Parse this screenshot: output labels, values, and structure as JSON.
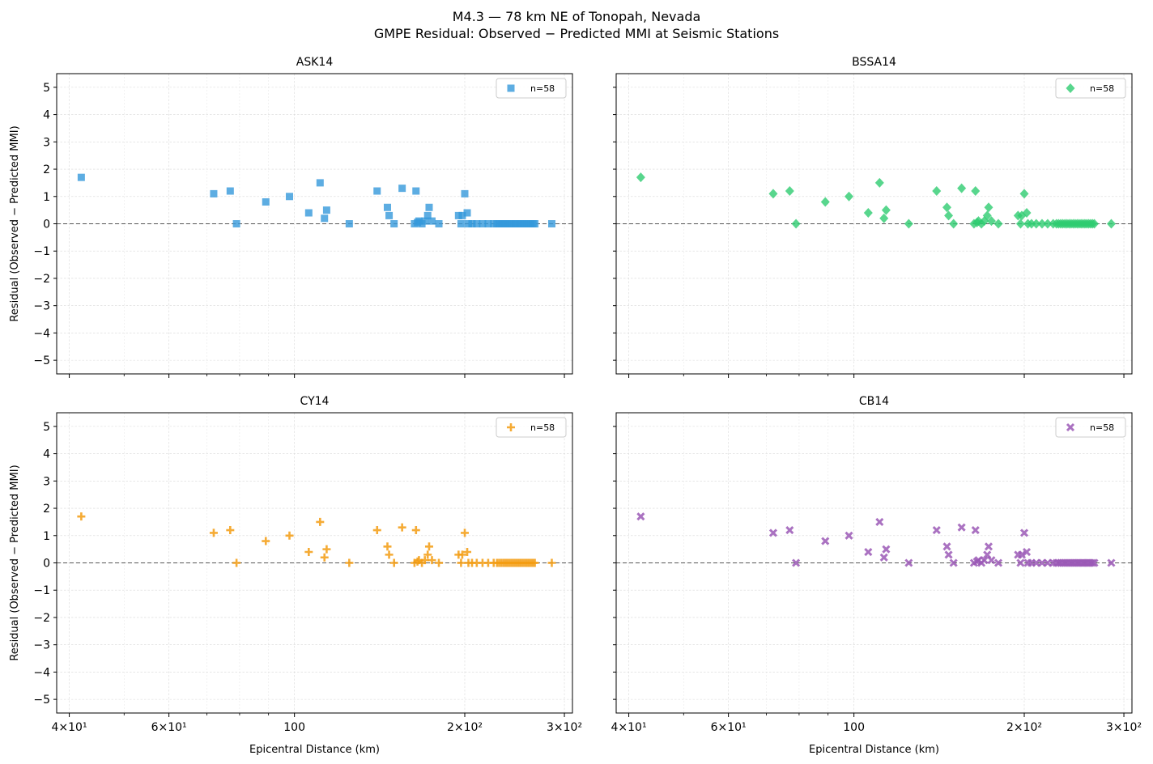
{
  "figure": {
    "title_line1": "M4.3 — 78 km NE of Tonopah, Nevada",
    "title_line2": "GMPE Residual: Observed − Predicted MMI at Seismic Stations"
  },
  "axes_text": {
    "xlabel": "Epicentral Distance (km)",
    "ylabel": "Residual (Observed − Predicted MMI)",
    "x_tick_labels": [
      {
        "value": 40,
        "label": "4×10¹"
      },
      {
        "value": 60,
        "label": "6×10¹"
      },
      {
        "value": 100,
        "label": "100"
      },
      {
        "value": 200,
        "label": "2×10²"
      },
      {
        "value": 300,
        "label": "3×10²"
      }
    ],
    "y_tick_labels": [
      "5",
      "4",
      "3",
      "2",
      "1",
      "0",
      "−1",
      "−2",
      "−3",
      "−4",
      "−5"
    ]
  },
  "chart_data": [
    {
      "type": "scatter",
      "title": "ASK14",
      "legend": "n=58",
      "legend_position": "top-right",
      "marker": "square",
      "color": "#3498db",
      "x_scale": "log",
      "xlim": [
        38,
        310
      ],
      "ylim": [
        -5.5,
        5.5
      ],
      "grid": true,
      "reference_line_y": 0,
      "points": [
        [
          42,
          1.7
        ],
        [
          72,
          1.1
        ],
        [
          77,
          1.2
        ],
        [
          79,
          0.0
        ],
        [
          89,
          0.8
        ],
        [
          98,
          1.0
        ],
        [
          106,
          0.4
        ],
        [
          111,
          1.5
        ],
        [
          113,
          0.2
        ],
        [
          114,
          0.5
        ],
        [
          125,
          0.0
        ],
        [
          140,
          1.2
        ],
        [
          146,
          0.6
        ],
        [
          147,
          0.3
        ],
        [
          150,
          0.0
        ],
        [
          155,
          1.3
        ],
        [
          163,
          0.0
        ],
        [
          164,
          1.2
        ],
        [
          165,
          0.05
        ],
        [
          166,
          0.1
        ],
        [
          168,
          0.0
        ],
        [
          170,
          0.1
        ],
        [
          172,
          0.3
        ],
        [
          173,
          0.6
        ],
        [
          175,
          0.1
        ],
        [
          180,
          0.0
        ],
        [
          195,
          0.3
        ],
        [
          197,
          0.0
        ],
        [
          198,
          0.3
        ],
        [
          200,
          1.1
        ],
        [
          202,
          0.4
        ],
        [
          203,
          0.0
        ],
        [
          206,
          0.0
        ],
        [
          210,
          0.0
        ],
        [
          215,
          0.0
        ],
        [
          220,
          0.0
        ],
        [
          225,
          0.0
        ],
        [
          228,
          0.0
        ],
        [
          230,
          0.0
        ],
        [
          232,
          0.0
        ],
        [
          234,
          0.0
        ],
        [
          236,
          0.0
        ],
        [
          238,
          0.0
        ],
        [
          240,
          0.0
        ],
        [
          242,
          0.0
        ],
        [
          244,
          0.0
        ],
        [
          246,
          0.0
        ],
        [
          248,
          0.0
        ],
        [
          250,
          0.0
        ],
        [
          252,
          0.0
        ],
        [
          254,
          0.0
        ],
        [
          256,
          0.0
        ],
        [
          258,
          0.0
        ],
        [
          260,
          0.0
        ],
        [
          262,
          0.0
        ],
        [
          264,
          0.0
        ],
        [
          266,
          0.0
        ],
        [
          285,
          0.0
        ]
      ]
    },
    {
      "type": "scatter",
      "title": "BSSA14",
      "legend": "n=58",
      "legend_position": "top-right",
      "marker": "diamond",
      "color": "#2ecc71",
      "x_scale": "log",
      "xlim": [
        38,
        310
      ],
      "ylim": [
        -5.5,
        5.5
      ],
      "grid": true,
      "reference_line_y": 0,
      "points": [
        [
          42,
          1.7
        ],
        [
          72,
          1.1
        ],
        [
          77,
          1.2
        ],
        [
          79,
          0.0
        ],
        [
          89,
          0.8
        ],
        [
          98,
          1.0
        ],
        [
          106,
          0.4
        ],
        [
          111,
          1.5
        ],
        [
          113,
          0.2
        ],
        [
          114,
          0.5
        ],
        [
          125,
          0.0
        ],
        [
          140,
          1.2
        ],
        [
          146,
          0.6
        ],
        [
          147,
          0.3
        ],
        [
          150,
          0.0
        ],
        [
          155,
          1.3
        ],
        [
          163,
          0.0
        ],
        [
          164,
          1.2
        ],
        [
          165,
          0.05
        ],
        [
          166,
          0.1
        ],
        [
          168,
          0.0
        ],
        [
          170,
          0.1
        ],
        [
          172,
          0.3
        ],
        [
          173,
          0.6
        ],
        [
          175,
          0.1
        ],
        [
          180,
          0.0
        ],
        [
          195,
          0.3
        ],
        [
          197,
          0.0
        ],
        [
          198,
          0.3
        ],
        [
          200,
          1.1
        ],
        [
          202,
          0.4
        ],
        [
          203,
          0.0
        ],
        [
          206,
          0.0
        ],
        [
          210,
          0.0
        ],
        [
          215,
          0.0
        ],
        [
          220,
          0.0
        ],
        [
          225,
          0.0
        ],
        [
          228,
          0.0
        ],
        [
          230,
          0.0
        ],
        [
          232,
          0.0
        ],
        [
          234,
          0.0
        ],
        [
          236,
          0.0
        ],
        [
          238,
          0.0
        ],
        [
          240,
          0.0
        ],
        [
          242,
          0.0
        ],
        [
          244,
          0.0
        ],
        [
          246,
          0.0
        ],
        [
          248,
          0.0
        ],
        [
          250,
          0.0
        ],
        [
          252,
          0.0
        ],
        [
          254,
          0.0
        ],
        [
          256,
          0.0
        ],
        [
          258,
          0.0
        ],
        [
          260,
          0.0
        ],
        [
          262,
          0.0
        ],
        [
          264,
          0.0
        ],
        [
          266,
          0.0
        ],
        [
          285,
          0.0
        ]
      ]
    },
    {
      "type": "scatter",
      "title": "CY14",
      "legend": "n=58",
      "legend_position": "top-right",
      "marker": "plus",
      "color": "#f39c12",
      "x_scale": "log",
      "xlim": [
        38,
        310
      ],
      "ylim": [
        -5.5,
        5.5
      ],
      "grid": true,
      "reference_line_y": 0,
      "points": [
        [
          42,
          1.7
        ],
        [
          72,
          1.1
        ],
        [
          77,
          1.2
        ],
        [
          79,
          0.0
        ],
        [
          89,
          0.8
        ],
        [
          98,
          1.0
        ],
        [
          106,
          0.4
        ],
        [
          111,
          1.5
        ],
        [
          113,
          0.2
        ],
        [
          114,
          0.5
        ],
        [
          125,
          0.0
        ],
        [
          140,
          1.2
        ],
        [
          146,
          0.6
        ],
        [
          147,
          0.3
        ],
        [
          150,
          0.0
        ],
        [
          155,
          1.3
        ],
        [
          163,
          0.0
        ],
        [
          164,
          1.2
        ],
        [
          165,
          0.05
        ],
        [
          166,
          0.1
        ],
        [
          168,
          0.0
        ],
        [
          170,
          0.1
        ],
        [
          172,
          0.3
        ],
        [
          173,
          0.6
        ],
        [
          175,
          0.1
        ],
        [
          180,
          0.0
        ],
        [
          195,
          0.3
        ],
        [
          197,
          0.0
        ],
        [
          198,
          0.3
        ],
        [
          200,
          1.1
        ],
        [
          202,
          0.4
        ],
        [
          203,
          0.0
        ],
        [
          206,
          0.0
        ],
        [
          210,
          0.0
        ],
        [
          215,
          0.0
        ],
        [
          220,
          0.0
        ],
        [
          225,
          0.0
        ],
        [
          228,
          0.0
        ],
        [
          230,
          0.0
        ],
        [
          232,
          0.0
        ],
        [
          234,
          0.0
        ],
        [
          236,
          0.0
        ],
        [
          238,
          0.0
        ],
        [
          240,
          0.0
        ],
        [
          242,
          0.0
        ],
        [
          244,
          0.0
        ],
        [
          246,
          0.0
        ],
        [
          248,
          0.0
        ],
        [
          250,
          0.0
        ],
        [
          252,
          0.0
        ],
        [
          254,
          0.0
        ],
        [
          256,
          0.0
        ],
        [
          258,
          0.0
        ],
        [
          260,
          0.0
        ],
        [
          262,
          0.0
        ],
        [
          264,
          0.0
        ],
        [
          266,
          0.0
        ],
        [
          285,
          0.0
        ]
      ]
    },
    {
      "type": "scatter",
      "title": "CB14",
      "legend": "n=58",
      "legend_position": "top-right",
      "marker": "x",
      "color": "#9b59b6",
      "x_scale": "log",
      "xlim": [
        38,
        310
      ],
      "ylim": [
        -5.5,
        5.5
      ],
      "grid": true,
      "reference_line_y": 0,
      "points": [
        [
          42,
          1.7
        ],
        [
          72,
          1.1
        ],
        [
          77,
          1.2
        ],
        [
          79,
          0.0
        ],
        [
          89,
          0.8
        ],
        [
          98,
          1.0
        ],
        [
          106,
          0.4
        ],
        [
          111,
          1.5
        ],
        [
          113,
          0.2
        ],
        [
          114,
          0.5
        ],
        [
          125,
          0.0
        ],
        [
          140,
          1.2
        ],
        [
          146,
          0.6
        ],
        [
          147,
          0.3
        ],
        [
          150,
          0.0
        ],
        [
          155,
          1.3
        ],
        [
          163,
          0.0
        ],
        [
          164,
          1.2
        ],
        [
          165,
          0.05
        ],
        [
          166,
          0.1
        ],
        [
          168,
          0.0
        ],
        [
          170,
          0.1
        ],
        [
          172,
          0.3
        ],
        [
          173,
          0.6
        ],
        [
          175,
          0.1
        ],
        [
          180,
          0.0
        ],
        [
          195,
          0.3
        ],
        [
          197,
          0.0
        ],
        [
          198,
          0.3
        ],
        [
          200,
          1.1
        ],
        [
          202,
          0.4
        ],
        [
          203,
          0.0
        ],
        [
          206,
          0.0
        ],
        [
          210,
          0.0
        ],
        [
          215,
          0.0
        ],
        [
          220,
          0.0
        ],
        [
          225,
          0.0
        ],
        [
          228,
          0.0
        ],
        [
          230,
          0.0
        ],
        [
          232,
          0.0
        ],
        [
          234,
          0.0
        ],
        [
          236,
          0.0
        ],
        [
          238,
          0.0
        ],
        [
          240,
          0.0
        ],
        [
          242,
          0.0
        ],
        [
          244,
          0.0
        ],
        [
          246,
          0.0
        ],
        [
          248,
          0.0
        ],
        [
          250,
          0.0
        ],
        [
          252,
          0.0
        ],
        [
          254,
          0.0
        ],
        [
          256,
          0.0
        ],
        [
          258,
          0.0
        ],
        [
          260,
          0.0
        ],
        [
          262,
          0.0
        ],
        [
          264,
          0.0
        ],
        [
          266,
          0.0
        ],
        [
          285,
          0.0
        ]
      ]
    }
  ]
}
